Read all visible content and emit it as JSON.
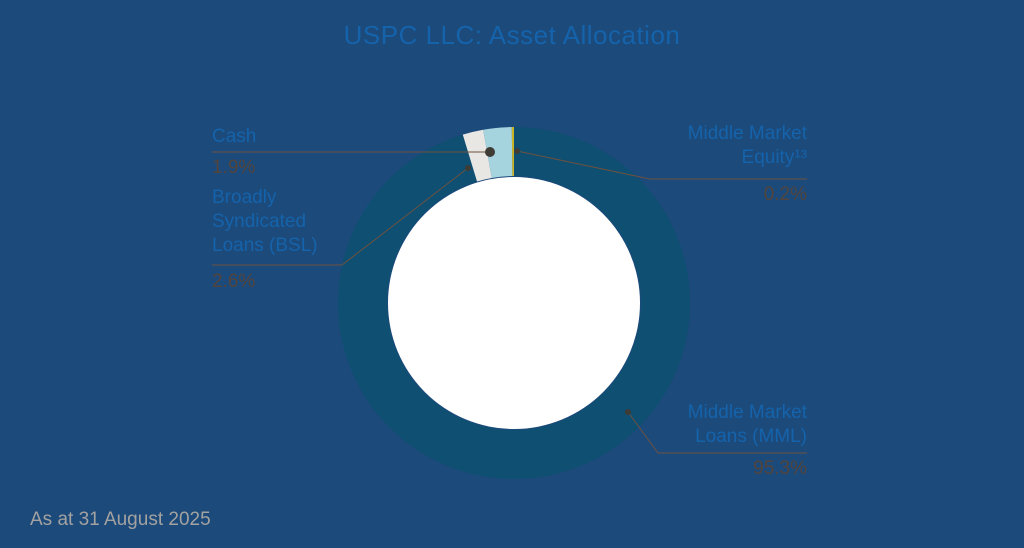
{
  "title": "USPC LLC: Asset Allocation",
  "footer": {
    "as_at": "As at 31 August 2025"
  },
  "colors": {
    "background": "#1c4a7b",
    "title_text": "#1563ab",
    "label_text": "#1563ab",
    "value_text": "#53443b",
    "leader_line": "#6d513f",
    "marker_dot": "#3f3b35",
    "footer_text": "#a3a2a0"
  },
  "chart_data": {
    "type": "pie",
    "title": "USPC LLC: Asset Allocation",
    "donut": true,
    "inner_radius_ratio": 0.72,
    "start_angle_deg": -90,
    "direction": "clockwise",
    "hole_color": "#ffffff",
    "series": [
      {
        "label": "Middle Market Loans (MML)",
        "value": 95.3,
        "color": "#0e4f72"
      },
      {
        "label": "Cash",
        "value": 1.9,
        "color": "#e9e7e4"
      },
      {
        "label": "Broadly Syndicated Loans (BSL)",
        "value": 2.6,
        "color": "#a5d3de"
      },
      {
        "label": "Middle Market Equity",
        "value": 0.2,
        "color": "#c9b42a"
      }
    ]
  },
  "labels": {
    "cash": {
      "name": "Cash",
      "value": "1.9%"
    },
    "bsl": {
      "name": "Broadly\nSyndicated\nLoans (BSL)",
      "value": "2.6%"
    },
    "equity": {
      "name": "Middle Market\nEquity¹³",
      "value": "0.2%"
    },
    "mml": {
      "name": "Middle Market\nLoans (MML)",
      "value": "95.3%"
    }
  }
}
